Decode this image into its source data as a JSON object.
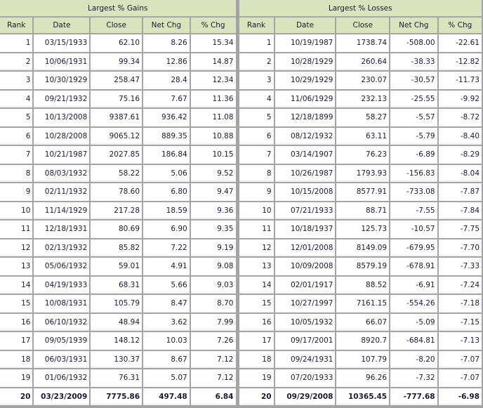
{
  "gains": {
    "title": "Largest % Gains",
    "columns": [
      "Rank",
      "Date",
      "Close",
      "Net Chg",
      "% Chg"
    ],
    "rows": [
      [
        "1",
        "03/15/1933",
        "62.10",
        "8.26",
        "15.34"
      ],
      [
        "2",
        "10/06/1931",
        "99.34",
        "12.86",
        "14.87"
      ],
      [
        "3",
        "10/30/1929",
        "258.47",
        "28.4",
        "12.34"
      ],
      [
        "4",
        "09/21/1932",
        "75.16",
        "7.67",
        "11.36"
      ],
      [
        "5",
        "10/13/2008",
        "9387.61",
        "936.42",
        "11.08"
      ],
      [
        "6",
        "10/28/2008",
        "9065.12",
        "889.35",
        "10.88"
      ],
      [
        "7",
        "10/21/1987",
        "2027.85",
        "186.84",
        "10.15"
      ],
      [
        "8",
        "08/03/1932",
        "58.22",
        "5.06",
        "9.52"
      ],
      [
        "9",
        "02/11/1932",
        "78.60",
        "6.80",
        "9.47"
      ],
      [
        "10",
        "11/14/1929",
        "217.28",
        "18.59",
        "9.36"
      ],
      [
        "11",
        "12/18/1931",
        "80.69",
        "6.90",
        "9.35"
      ],
      [
        "12",
        "02/13/1932",
        "85.82",
        "7.22",
        "9.19"
      ],
      [
        "13",
        "05/06/1932",
        "59.01",
        "4.91",
        "9.08"
      ],
      [
        "14",
        "04/19/1933",
        "68.31",
        "5.66",
        "9.03"
      ],
      [
        "15",
        "10/08/1931",
        "105.79",
        "8.47",
        "8.70"
      ],
      [
        "16",
        "06/10/1932",
        "48.94",
        "3.62",
        "7.99"
      ],
      [
        "17",
        "09/05/1939",
        "148.12",
        "10.03",
        "7.26"
      ],
      [
        "18",
        "06/03/1931",
        "130.37",
        "8.67",
        "7.12"
      ],
      [
        "19",
        "01/06/1932",
        "76.31",
        "5.07",
        "7.12"
      ],
      [
        "20",
        "03/23/2009",
        "7775.86",
        "497.48",
        "6.84"
      ]
    ]
  },
  "losses": {
    "title": "Largest % Losses",
    "columns": [
      "Rank",
      "Date",
      "Close",
      "Net Chg",
      "% Chg"
    ],
    "rows": [
      [
        "1",
        "10/19/1987",
        "1738.74",
        "-508.00",
        "-22.61"
      ],
      [
        "2",
        "10/28/1929",
        "260.64",
        "-38.33",
        "-12.82"
      ],
      [
        "3",
        "10/29/1929",
        "230.07",
        "-30.57",
        "-11.73"
      ],
      [
        "4",
        "11/06/1929",
        "232.13",
        "-25.55",
        "-9.92"
      ],
      [
        "5",
        "12/18/1899",
        "58.27",
        "-5.57",
        "-8.72"
      ],
      [
        "6",
        "08/12/1932",
        "63.11",
        "-5.79",
        "-8.40"
      ],
      [
        "7",
        "03/14/1907",
        "76.23",
        "-6.89",
        "-8.29"
      ],
      [
        "8",
        "10/26/1987",
        "1793.93",
        "-156.83",
        "-8.04"
      ],
      [
        "9",
        "10/15/2008",
        "8577.91",
        "-733.08",
        "-7.87"
      ],
      [
        "10",
        "07/21/1933",
        "88.71",
        "-7.55",
        "-7.84"
      ],
      [
        "11",
        "10/18/1937",
        "125.73",
        "-10.57",
        "-7.75"
      ],
      [
        "12",
        "12/01/2008",
        "8149.09",
        "-679.95",
        "-7.70"
      ],
      [
        "13",
        "10/09/2008",
        "8579.19",
        "-678.91",
        "-7.33"
      ],
      [
        "14",
        "02/01/1917",
        "88.52",
        "-6.91",
        "-7.24"
      ],
      [
        "15",
        "10/27/1997",
        "7161.15",
        "-554.26",
        "-7.18"
      ],
      [
        "16",
        "10/05/1932",
        "66.07",
        "-5.09",
        "-7.15"
      ],
      [
        "17",
        "09/17/2001",
        "8920.7",
        "-684.81",
        "-7.13"
      ],
      [
        "18",
        "09/24/1931",
        "107.79",
        "-8.20",
        "-7.07"
      ],
      [
        "19",
        "07/20/1933",
        "96.26",
        "-7.32",
        "-7.07"
      ],
      [
        "20",
        "09/29/2008",
        "10365.45",
        "-777.68",
        "-6.98"
      ]
    ]
  },
  "colors": {
    "header_bg": "#d8e4bc",
    "grid": "#a4a4a4",
    "text": "#1a1a33"
  }
}
